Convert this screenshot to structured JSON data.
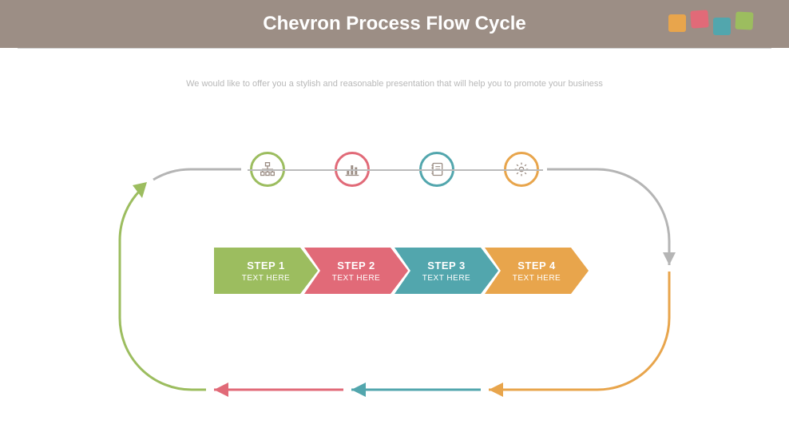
{
  "header": {
    "title": "Chevron Process Flow Cycle",
    "squares": [
      "#e8a54c",
      "#e16a78",
      "#52a6ad",
      "#9cbd5f"
    ]
  },
  "subtitle": "We would like to offer you a stylish and reasonable presentation that will help you to promote your business",
  "colors": {
    "step1": "#9cbd5f",
    "step2": "#e16a78",
    "step3": "#52a6ad",
    "step4": "#e8a54c",
    "grey": "#b5b5b5",
    "icon": "#9c8e85"
  },
  "steps": [
    {
      "step": "STEP 1",
      "sub": "TEXT HERE",
      "icon": "org-chart",
      "color": "#9cbd5f"
    },
    {
      "step": "STEP 2",
      "sub": "TEXT HERE",
      "icon": "bar-chart",
      "color": "#e16a78"
    },
    {
      "step": "STEP 3",
      "sub": "TEXT HERE",
      "icon": "notebook",
      "color": "#52a6ad"
    },
    {
      "step": "STEP 4",
      "sub": "TEXT HERE",
      "icon": "gear",
      "color": "#e8a54c"
    }
  ]
}
